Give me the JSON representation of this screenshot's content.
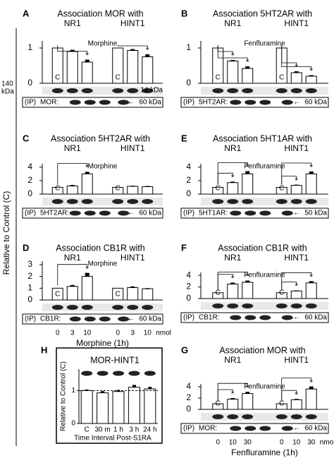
{
  "figure_ylabel": "Relative to Control (C)",
  "chart_data": [
    {
      "type": "bar",
      "panel": "A",
      "title": "Association MOR with",
      "treatment": "Morphine",
      "control_label": "C",
      "marker": "*",
      "groups": [
        {
          "name": "NR1",
          "values": [
            1,
            0.9,
            0.6
          ],
          "errors": [
            0,
            0.05,
            0.07
          ],
          "significant": [
            2
          ]
        },
        {
          "name": "HINT1",
          "values": [
            1,
            0.93,
            0.75
          ],
          "errors": [
            0,
            0.04,
            0.07
          ],
          "significant": [
            2
          ]
        }
      ],
      "ylim": [
        0,
        1.2
      ],
      "yticks": [
        0,
        1
      ],
      "blot": {
        "ip": "(IP)",
        "antibody": "MOR:",
        "kda": "60 kDa",
        "marker_left": [
          "140",
          "kDa"
        ],
        "marker_right": "14 kDa"
      }
    },
    {
      "type": "bar",
      "panel": "B",
      "title": "Association 5HT2AR with",
      "treatment": "Fenfluramine",
      "control_label": "C",
      "marker": "*",
      "groups": [
        {
          "name": "NR1",
          "values": [
            1,
            0.63,
            0.42
          ],
          "errors": [
            0,
            0.03,
            0.06
          ],
          "significant": [
            1,
            2
          ]
        },
        {
          "name": "HINT1",
          "values": [
            1,
            0.3,
            0.2
          ],
          "errors": [
            0,
            0.04,
            0.03
          ],
          "significant": [
            1,
            2
          ]
        }
      ],
      "ylim": [
        0,
        1.2
      ],
      "yticks": [
        0,
        1
      ],
      "blot": {
        "ip": "(IP)",
        "antibody": "5HT2AR:",
        "kda": "60 kDa"
      }
    },
    {
      "type": "bar",
      "panel": "C",
      "title": "Association 5HT2AR with",
      "treatment": "Morphine",
      "control_label": "C",
      "marker": "*",
      "groups": [
        {
          "name": "NR1",
          "values": [
            1,
            1.2,
            3.0
          ],
          "errors": [
            0,
            0.15,
            0.3
          ],
          "significant": [
            2
          ]
        },
        {
          "name": "HINT1",
          "values": [
            1,
            1.15,
            1.1
          ],
          "errors": [
            0,
            0.1,
            0.1
          ],
          "significant": []
        }
      ],
      "ylim": [
        0,
        4.5
      ],
      "yticks": [
        0,
        2,
        4
      ],
      "blot": {
        "ip": "(IP)",
        "antibody": "5HT2AR:",
        "kda": "60 kDa"
      }
    },
    {
      "type": "bar",
      "panel": "E",
      "title": "Association 5HT1AR with",
      "treatment": "Fenfluramine",
      "control_label": "C",
      "marker": "*",
      "groups": [
        {
          "name": "NR1",
          "values": [
            1,
            1.7,
            3.0
          ],
          "errors": [
            0,
            0.15,
            0.4
          ],
          "significant": [
            1,
            2
          ]
        },
        {
          "name": "HINT1",
          "values": [
            1,
            1.3,
            3.0
          ],
          "errors": [
            0,
            0.1,
            0.35
          ],
          "significant": [
            1,
            2
          ]
        }
      ],
      "ylim": [
        0,
        4.5
      ],
      "yticks": [
        0,
        2,
        4
      ],
      "blot": {
        "ip": "(IP)",
        "antibody": "5HT1AR:",
        "kda": "50 kDa"
      }
    },
    {
      "type": "bar",
      "panel": "D",
      "title": "Association CB1R with",
      "treatment": "Morphine",
      "control_label": "C",
      "marker": "*",
      "groups": [
        {
          "name": "NR1",
          "values": [
            1,
            1.15,
            2.0
          ],
          "errors": [
            0,
            0.12,
            0.3
          ],
          "significant": [
            2
          ]
        },
        {
          "name": "HINT1",
          "values": [
            1,
            1.05,
            0.95
          ],
          "errors": [
            0,
            0.1,
            0.06
          ],
          "significant": []
        }
      ],
      "ylim": [
        0,
        3.3
      ],
      "yticks": [
        0,
        1,
        2,
        3
      ],
      "blot": {
        "ip": "(IP)",
        "antibody": "CB1R:",
        "kda": "60 kDa"
      },
      "doses": [
        0,
        3,
        10
      ],
      "dose_unit": "nmol",
      "xlabel": "Morphine (1h)"
    },
    {
      "type": "bar",
      "panel": "F",
      "title": "Association CB1R with",
      "treatment": "Fenfluramine",
      "control_label": "C",
      "marker": "*",
      "groups": [
        {
          "name": "NR1",
          "values": [
            1,
            2.5,
            2.8
          ],
          "errors": [
            0,
            0.25,
            0.3
          ],
          "significant": [
            1,
            2
          ]
        },
        {
          "name": "HINT1",
          "values": [
            1,
            1.3,
            2.7
          ],
          "errors": [
            0,
            0.1,
            0.3
          ],
          "significant": [
            1,
            2
          ]
        }
      ],
      "ylim": [
        0,
        4.5
      ],
      "yticks": [
        0,
        2,
        4
      ],
      "blot": {
        "ip": "(IP)",
        "antibody": "CB1R:",
        "kda": "60 kDa"
      }
    },
    {
      "type": "bar",
      "panel": "G",
      "title": "Association MOR with",
      "treatment": "Fenfluramine",
      "control_label": "C",
      "marker": "*",
      "groups": [
        {
          "name": "NR1",
          "values": [
            1,
            1.8,
            2.8
          ],
          "errors": [
            0,
            0.2,
            0.3
          ],
          "significant": [
            1,
            2
          ]
        },
        {
          "name": "HINT1",
          "values": [
            1,
            1.7,
            3.6
          ],
          "errors": [
            0,
            0.15,
            0.45
          ],
          "significant": [
            1,
            2
          ]
        }
      ],
      "ylim": [
        0,
        4.5
      ],
      "yticks": [
        0,
        2,
        4
      ],
      "blot": {
        "ip": "(IP)",
        "antibody": "MOR:",
        "kda": "60 kDa"
      },
      "doses": [
        0,
        10,
        30
      ],
      "dose_unit": "nmol",
      "xlabel": "Fenfluramine (1h)"
    },
    {
      "type": "simple_bar",
      "panel": "H",
      "title": "MOR-HINT1",
      "ylabel": "Relative to Control (C)",
      "xlabel": "Time Interval Post-S1RA",
      "categories": [
        "C",
        "30 m",
        "1 h",
        "3 h",
        "24 h"
      ],
      "values": [
        1,
        0.93,
        0.97,
        1.1,
        1.05
      ],
      "errors": [
        0.03,
        0.05,
        0.05,
        0.07,
        0.06
      ],
      "ylim": [
        0,
        1.65
      ],
      "yticks": [
        0,
        1
      ]
    }
  ]
}
